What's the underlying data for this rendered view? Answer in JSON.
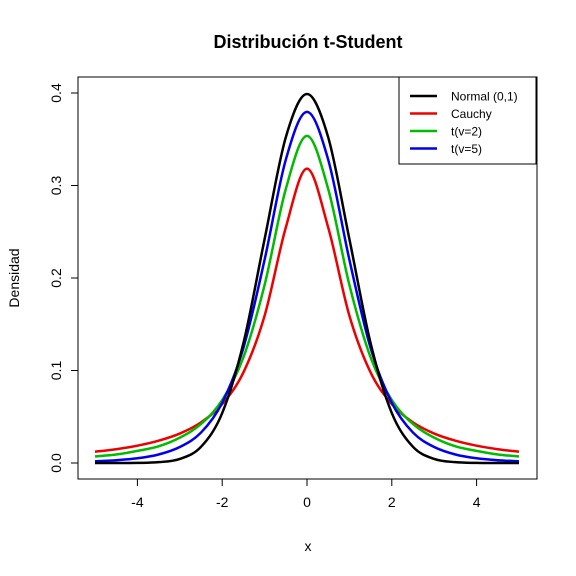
{
  "chart_data": {
    "type": "line",
    "title": "Distribución t-Student",
    "xlabel": "x",
    "ylabel": "Densidad",
    "xlim": [
      -5,
      5
    ],
    "ylim": [
      0,
      0.4
    ],
    "xticks": [
      -4,
      -2,
      0,
      2,
      4
    ],
    "yticks": [
      0.0,
      0.1,
      0.2,
      0.3,
      0.4
    ],
    "xtick_labels": [
      "-4",
      "-2",
      "0",
      "2",
      "4"
    ],
    "ytick_labels": [
      "0.0",
      "0.1",
      "0.2",
      "0.3",
      "0.4"
    ],
    "grid": false,
    "legend_position": "top-right",
    "x": [
      -5.0,
      -4.5,
      -4.0,
      -3.5,
      -3.0,
      -2.5,
      -2.0,
      -1.5,
      -1.0,
      -0.5,
      0.0,
      0.5,
      1.0,
      1.5,
      2.0,
      2.5,
      3.0,
      3.5,
      4.0,
      4.5,
      5.0
    ],
    "series": [
      {
        "name": "Normal (0,1)",
        "color": "#000000",
        "values": [
          0.0,
          0.0,
          0.0001,
          0.0009,
          0.0044,
          0.0175,
          0.054,
          0.1295,
          0.242,
          0.3521,
          0.3989,
          0.3521,
          0.242,
          0.1295,
          0.054,
          0.0175,
          0.0044,
          0.0009,
          0.0001,
          0.0,
          0.0
        ]
      },
      {
        "name": "Cauchy",
        "color": "#ee0000",
        "values": [
          0.0122,
          0.0149,
          0.0187,
          0.0241,
          0.0318,
          0.0439,
          0.0637,
          0.0979,
          0.1592,
          0.2546,
          0.3183,
          0.2546,
          0.1592,
          0.0979,
          0.0637,
          0.0439,
          0.0318,
          0.0241,
          0.0187,
          0.0149,
          0.0122
        ]
      },
      {
        "name": "t(v=2)",
        "color": "#00bb00",
        "values": [
          0.0071,
          0.0092,
          0.0131,
          0.018,
          0.0274,
          0.0422,
          0.068,
          0.1142,
          0.1925,
          0.2962,
          0.3536,
          0.2962,
          0.1925,
          0.1142,
          0.068,
          0.0422,
          0.0274,
          0.018,
          0.0131,
          0.0092,
          0.0071
        ]
      },
      {
        "name": "t(v=5)",
        "color": "#0000ee",
        "values": [
          0.0018,
          0.003,
          0.0051,
          0.0092,
          0.0173,
          0.0329,
          0.0651,
          0.1245,
          0.2197,
          0.3279,
          0.3796,
          0.3279,
          0.2197,
          0.1245,
          0.0651,
          0.0329,
          0.0173,
          0.0092,
          0.0051,
          0.003,
          0.0018
        ]
      }
    ]
  }
}
